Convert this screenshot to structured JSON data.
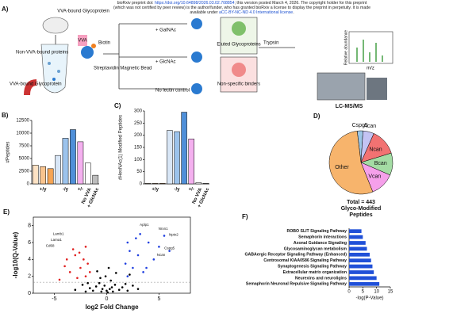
{
  "header": {
    "line1_pre": "bioRxiv preprint doi: ",
    "doi": "https://doi.org/10.64898/2026.03.02.708854",
    "line1_post": "; this version posted March 4, 2026. The copyright holder for this preprint",
    "line2": "(which was not certified by peer review) is the author/funder, who has granted bioRxiv a license to display the preprint in perpetuity. It is made",
    "line3_pre": "available under ",
    "license": "aCC-BY-NC-ND 4.0 International license",
    "line3_post": "."
  },
  "diagram": {
    "label": "A)",
    "vva_bound_top": "VVA-bound Glycoprotein",
    "biotin": "Biotin",
    "vva": "VVA",
    "non_vva": "Non-VVA-bound proteins",
    "bead": "Streptavidin Magnetic Bead",
    "vva_bound_bottom": "VVA-bound Glycoprotein",
    "galnac": "+ GalNAc",
    "glcnac": "+ GlcNAc",
    "no_lectin": "No lectin control",
    "eluted": "Eluted Glycoproteins",
    "nonspecific": "Non-specific binders",
    "trypsin": "Trypsin",
    "rel_abundance": "Relative abundance",
    "mz": "m/z",
    "lcms": "LC-MS/MS"
  },
  "chart_data": [
    {
      "type": "bar",
      "label": "B)",
      "y_label": "#Peptides",
      "categories": [
        null,
        "+/y",
        null,
        null,
        "-/y",
        null,
        "+/-",
        "No VVA",
        "+ GlcNAc"
      ],
      "values": [
        3700,
        3400,
        3000,
        5600,
        9000,
        10700,
        8300,
        4100,
        1700
      ],
      "colors": [
        "#fde2c4",
        "#f9c48e",
        "#f5a555",
        "#d8e6f6",
        "#9cc3ec",
        "#4f8fd8",
        "#f4b0ef",
        "#ffffff",
        "#bdbdbd"
      ],
      "ylim": [
        0,
        12500
      ],
      "yticks": [
        0,
        2500,
        5000,
        7500,
        10000,
        12500
      ]
    },
    {
      "type": "bar",
      "label": "C)",
      "y_label": "#HexNAc(1) Modified Peptides",
      "categories": [
        null,
        "+/y",
        null,
        null,
        "-/y",
        null,
        "+/-",
        "No VVA",
        "+ GlcNAc"
      ],
      "values": [
        2,
        2,
        2,
        220,
        215,
        295,
        185,
        5,
        2
      ],
      "colors": [
        "#fde2c4",
        "#f9c48e",
        "#f5a555",
        "#d8e6f6",
        "#9cc3ec",
        "#4f8fd8",
        "#f4b0ef",
        "#ffffff",
        "#bdbdbd"
      ],
      "ylim": [
        0,
        300
      ],
      "yticks": [
        0,
        50,
        100,
        150,
        200,
        250,
        300
      ]
    },
    {
      "type": "pie",
      "label": "D)",
      "title": [
        "Total = 443",
        "Glyco-Modified",
        "Peptides"
      ],
      "categories": [
        "Cspg5",
        "Acan",
        "Ncan",
        "Bcan",
        "Vcan",
        "Other"
      ],
      "values": [
        13,
        25,
        60,
        50,
        55,
        240
      ],
      "colors": [
        "#9cc6e6",
        "#c3c3f3",
        "#f27272",
        "#a4dca4",
        "#f5a0ea",
        "#f7b46c"
      ]
    },
    {
      "type": "scatter",
      "label": "E)",
      "x_label": "log2 Fold Change",
      "y_label": "-log10(Q-Value)",
      "series": [
        {
          "color": "#000000",
          "x": [
            -0.5,
            0.3,
            -1,
            0.8,
            0.1,
            -0.2,
            1.2,
            -1.3,
            0.6,
            -0.7,
            0.4,
            -0.1,
            1.5,
            -1.6,
            2,
            -2,
            0.9,
            -0.9,
            0.2,
            2.5,
            -2.3,
            3,
            -3,
            0.5,
            -0.4,
            1.8,
            -1.8,
            0,
            2.2,
            -0.6
          ],
          "values": [
            0.2,
            0.5,
            0.8,
            1,
            0.1,
            0.9,
            0.4,
            0.3,
            0.2,
            1.2,
            1.5,
            2,
            0.7,
            0.6,
            0.3,
            0.2,
            2.4,
            2.6,
            3,
            0.9,
            1,
            0.5,
            0.4,
            0.7,
            0.5,
            1.1,
            1.2,
            0.3,
            2.2,
            1.8
          ]
        },
        {
          "color": "#e02020",
          "x": [
            -2,
            -2.5,
            -3,
            -1.8,
            -3.5,
            -2.2,
            -2.8,
            -4,
            -1.6,
            -3.2,
            -2.6,
            -4.5,
            -2,
            -3.8
          ],
          "values": [
            2,
            3,
            4.5,
            3.5,
            2.5,
            4,
            1.8,
            3.2,
            2.5,
            5.2,
            4.8,
            1.6,
            5.5,
            4
          ]
        },
        {
          "color": "#2040e0",
          "x": [
            2,
            2.5,
            3,
            1.8,
            3.5,
            2.2,
            4,
            2.8,
            4.5,
            5,
            3.2,
            5.5,
            6,
            2,
            3.8
          ],
          "values": [
            2,
            3,
            4.5,
            3.5,
            2.5,
            5,
            6,
            6.5,
            4,
            5.5,
            7,
            6.8,
            5,
            6,
            3
          ]
        }
      ],
      "threshold": 1.3,
      "annotations": [
        {
          "text": "Lamb1",
          "x": -4.6,
          "y": 7
        },
        {
          "text": "Lama1",
          "x": -4.8,
          "y": 6.3
        },
        {
          "text": "Cd68",
          "x": -5.4,
          "y": 5.6
        },
        {
          "text": "Aplp1",
          "x": 3.6,
          "y": 8.1
        },
        {
          "text": "Nrxn1",
          "x": 5.4,
          "y": 7.6
        },
        {
          "text": "Nptx2",
          "x": 6.4,
          "y": 6.9
        },
        {
          "text": "Cspg5",
          "x": 6,
          "y": 5.3
        },
        {
          "text": "Ncan",
          "x": 5.2,
          "y": 4.5
        }
      ],
      "xlim": [
        -7,
        8
      ],
      "xticks": [
        -5,
        0,
        5
      ],
      "ylim": [
        0,
        9
      ],
      "yticks": [
        0,
        2,
        4,
        6,
        8
      ]
    },
    {
      "type": "hbar",
      "label": "F)",
      "x_label": "-log(P-Value)",
      "color": "#2050d8",
      "categories": [
        "ROBO SLIT Signaling Pathway",
        "Semaphorin interactions",
        "Axonal Guidance Signaling",
        "Glycosaminoglycan metabolism",
        "GABAergic Receptor Signaling Pathway (Enhanced)",
        "Centrosomal KIAA0586 Signaling Pathway",
        "Synaptogenesis Signaling Pathway",
        "Extracellular matrix organization",
        "Neurexins and neuroligins",
        "Semaphorin Neuronal Repulsive Signaling Pathway"
      ],
      "values": [
        4.5,
        5,
        6,
        6.5,
        7.5,
        8,
        8.5,
        9,
        10,
        11
      ],
      "xlim": [
        0,
        15
      ],
      "xticks": [
        0,
        5,
        10,
        15
      ]
    }
  ]
}
